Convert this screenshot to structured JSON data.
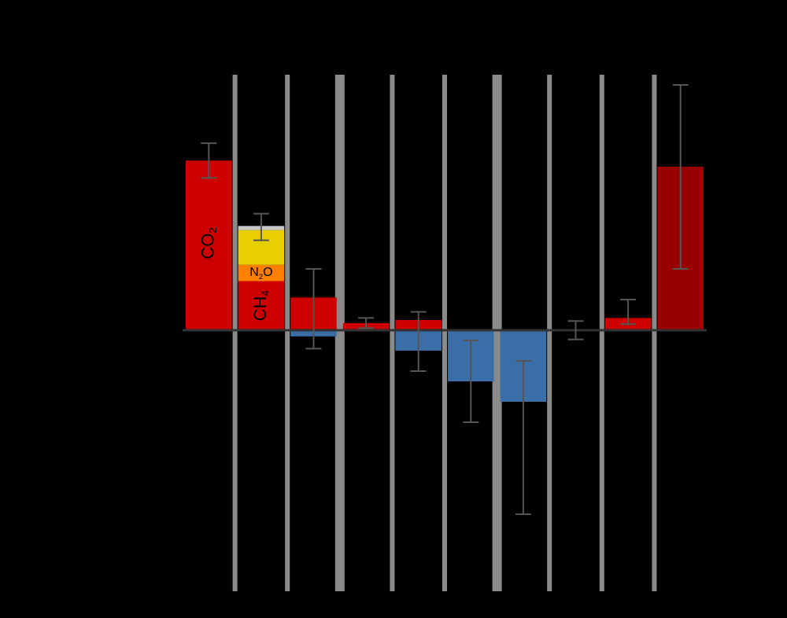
{
  "colors": {
    "background": "#000000",
    "warming": "#cc0000",
    "cooling": "#3a6ea8",
    "total": "#990000",
    "n2o": "#ff7f00",
    "halocarbons": "#e8cf00",
    "other_ghg": "#c8c8c8",
    "divider": "#8a8a8a",
    "error_bar": "#555555",
    "zero_line": "#333333"
  },
  "chart_data": {
    "type": "bar",
    "orientation": "vertical",
    "title": "",
    "xlabel": "",
    "ylabel": "",
    "ylim": [
      -1.6,
      3.0
    ],
    "grid": false,
    "legend": "none",
    "categories": [
      {
        "id": "co2",
        "labels": [
          {
            "base": "CO",
            "sub": "2"
          }
        ]
      },
      {
        "id": "other_ghg",
        "labels": [
          {
            "base": "N",
            "sub": "2",
            "after": "O"
          },
          {
            "base": "CH",
            "sub": "4"
          }
        ]
      },
      {
        "id": "c3",
        "labels": []
      },
      {
        "id": "c4",
        "labels": []
      },
      {
        "id": "c5",
        "labels": []
      },
      {
        "id": "c6",
        "labels": []
      },
      {
        "id": "c7",
        "labels": []
      },
      {
        "id": "c8",
        "labels": []
      },
      {
        "id": "c9",
        "labels": []
      },
      {
        "id": "total",
        "labels": []
      }
    ],
    "series": [
      {
        "values": [
          [
            {
              "from": 0,
              "to": 1.66,
              "color": "warming"
            }
          ],
          [
            {
              "from": 0,
              "to": 0.48,
              "color": "warming"
            },
            {
              "from": 0.48,
              "to": 0.64,
              "color": "n2o"
            },
            {
              "from": 0.64,
              "to": 0.98,
              "color": "halocarbons"
            },
            {
              "from": 0.98,
              "to": 1.02,
              "color": "other_ghg"
            }
          ],
          [
            {
              "from": -0.06,
              "to": 0,
              "color": "cooling"
            },
            {
              "from": 0,
              "to": 0.32,
              "color": "warming"
            }
          ],
          [
            {
              "from": 0,
              "to": 0.07,
              "color": "warming"
            }
          ],
          [
            {
              "from": -0.2,
              "to": 0,
              "color": "cooling"
            },
            {
              "from": 0,
              "to": 0.1,
              "color": "warming"
            }
          ],
          [
            {
              "from": -0.5,
              "to": 0,
              "color": "cooling"
            }
          ],
          [
            {
              "from": -0.7,
              "to": 0,
              "color": "cooling"
            }
          ],
          [
            {
              "from": 0,
              "to": 0.01,
              "color": "warming"
            }
          ],
          [
            {
              "from": 0,
              "to": 0.12,
              "color": "warming"
            }
          ],
          [
            {
              "from": 0,
              "to": 1.6,
              "color": "total"
            }
          ]
        ],
        "error_bars": [
          [
            1.49,
            1.83
          ],
          [
            0.88,
            1.14
          ],
          [
            -0.18,
            0.6
          ],
          [
            0.02,
            0.12
          ],
          [
            -0.4,
            0.18
          ],
          [
            -0.9,
            -0.1
          ],
          [
            -1.8,
            -0.3
          ],
          [
            -0.09,
            0.09
          ],
          [
            0.06,
            0.3
          ],
          [
            0.6,
            2.4
          ]
        ]
      }
    ]
  }
}
